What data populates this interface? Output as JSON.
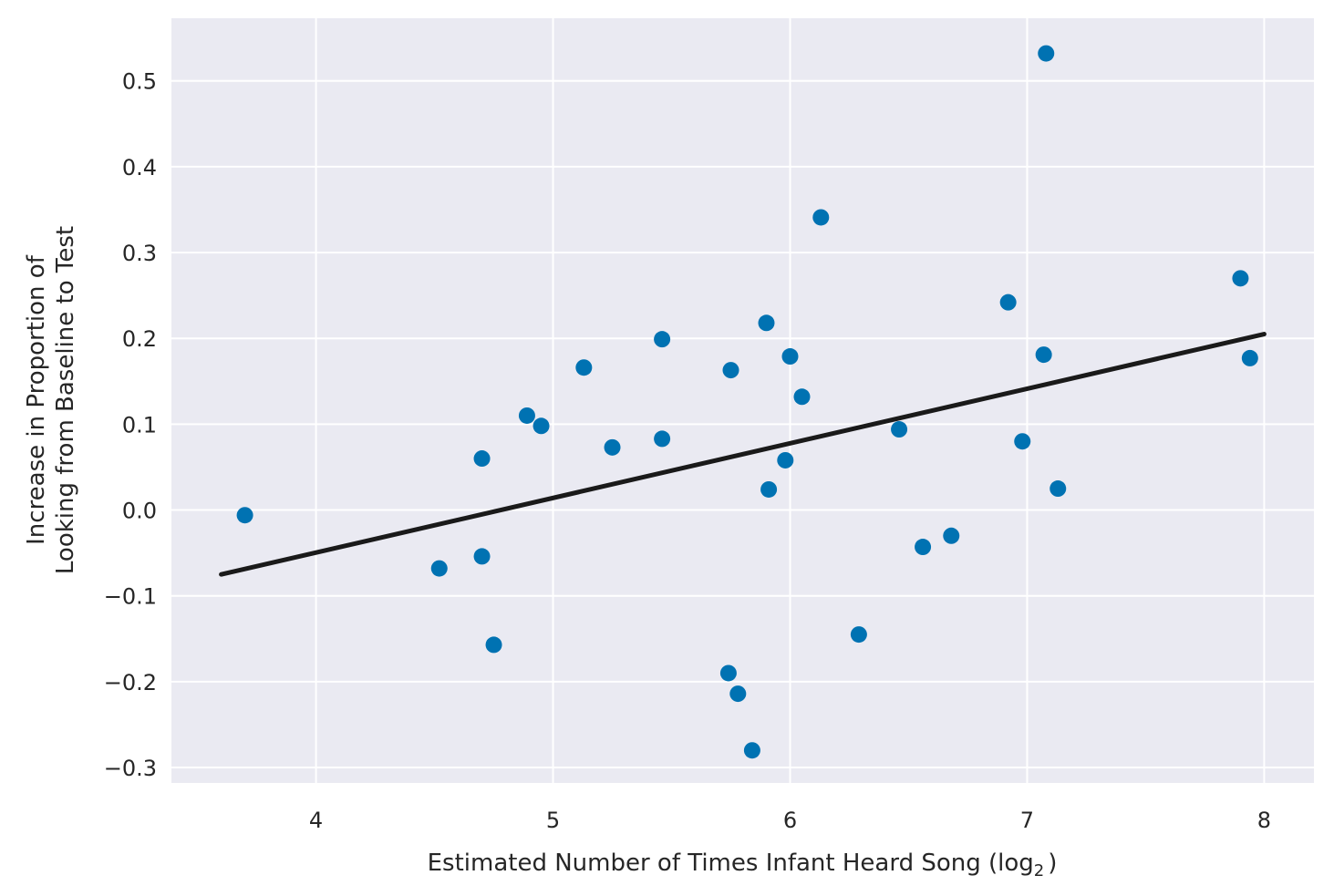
{
  "chart_data": {
    "type": "scatter",
    "xlabel": "Estimated Number of Times Infant Heard Song (log",
    "xlabel_sub": "2",
    "xlabel_close": ")",
    "ylabel_line1": "Increase in Proportion of",
    "ylabel_line2": "Looking from Baseline to Test",
    "xlim": [
      3.39,
      8.21
    ],
    "ylim": [
      -0.318,
      0.573
    ],
    "xticks": [
      4,
      5,
      6,
      7,
      8
    ],
    "xtick_labels": [
      "4",
      "5",
      "6",
      "7",
      "8"
    ],
    "yticks": [
      0.5,
      0.4,
      0.3,
      0.2,
      0.1,
      0.0,
      -0.1,
      -0.2,
      -0.3
    ],
    "ytick_labels": [
      "0.5",
      "0.4",
      "0.3",
      "0.2",
      "0.1",
      "0.0",
      "−0.1",
      "−0.2",
      "−0.3"
    ],
    "grid": true,
    "colors": {
      "background": "#EAEAF2",
      "grid": "#FFFFFF",
      "points": "#0072B2",
      "fit_line": "#1A1A1A"
    },
    "points": [
      {
        "x": 3.7,
        "y": -0.006
      },
      {
        "x": 4.52,
        "y": -0.068
      },
      {
        "x": 4.7,
        "y": 0.06
      },
      {
        "x": 4.7,
        "y": -0.054
      },
      {
        "x": 4.75,
        "y": -0.157
      },
      {
        "x": 4.89,
        "y": 0.11
      },
      {
        "x": 4.95,
        "y": 0.098
      },
      {
        "x": 5.13,
        "y": 0.166
      },
      {
        "x": 5.25,
        "y": 0.073
      },
      {
        "x": 5.46,
        "y": 0.199
      },
      {
        "x": 5.46,
        "y": 0.083
      },
      {
        "x": 5.74,
        "y": -0.19
      },
      {
        "x": 5.75,
        "y": 0.163
      },
      {
        "x": 5.78,
        "y": -0.214
      },
      {
        "x": 5.84,
        "y": -0.28
      },
      {
        "x": 5.9,
        "y": 0.218
      },
      {
        "x": 5.91,
        "y": 0.024
      },
      {
        "x": 5.98,
        "y": 0.058
      },
      {
        "x": 6.0,
        "y": 0.179
      },
      {
        "x": 6.05,
        "y": 0.132
      },
      {
        "x": 6.13,
        "y": 0.341
      },
      {
        "x": 6.29,
        "y": -0.145
      },
      {
        "x": 6.46,
        "y": 0.094
      },
      {
        "x": 6.56,
        "y": -0.043
      },
      {
        "x": 6.68,
        "y": -0.03
      },
      {
        "x": 6.92,
        "y": 0.242
      },
      {
        "x": 6.98,
        "y": 0.08
      },
      {
        "x": 7.07,
        "y": 0.181
      },
      {
        "x": 7.08,
        "y": 0.532
      },
      {
        "x": 7.13,
        "y": 0.025
      },
      {
        "x": 7.9,
        "y": 0.27
      },
      {
        "x": 7.94,
        "y": 0.177
      }
    ],
    "fit_line": {
      "x": [
        3.6,
        8.0
      ],
      "y": [
        -0.075,
        0.205
      ]
    }
  }
}
